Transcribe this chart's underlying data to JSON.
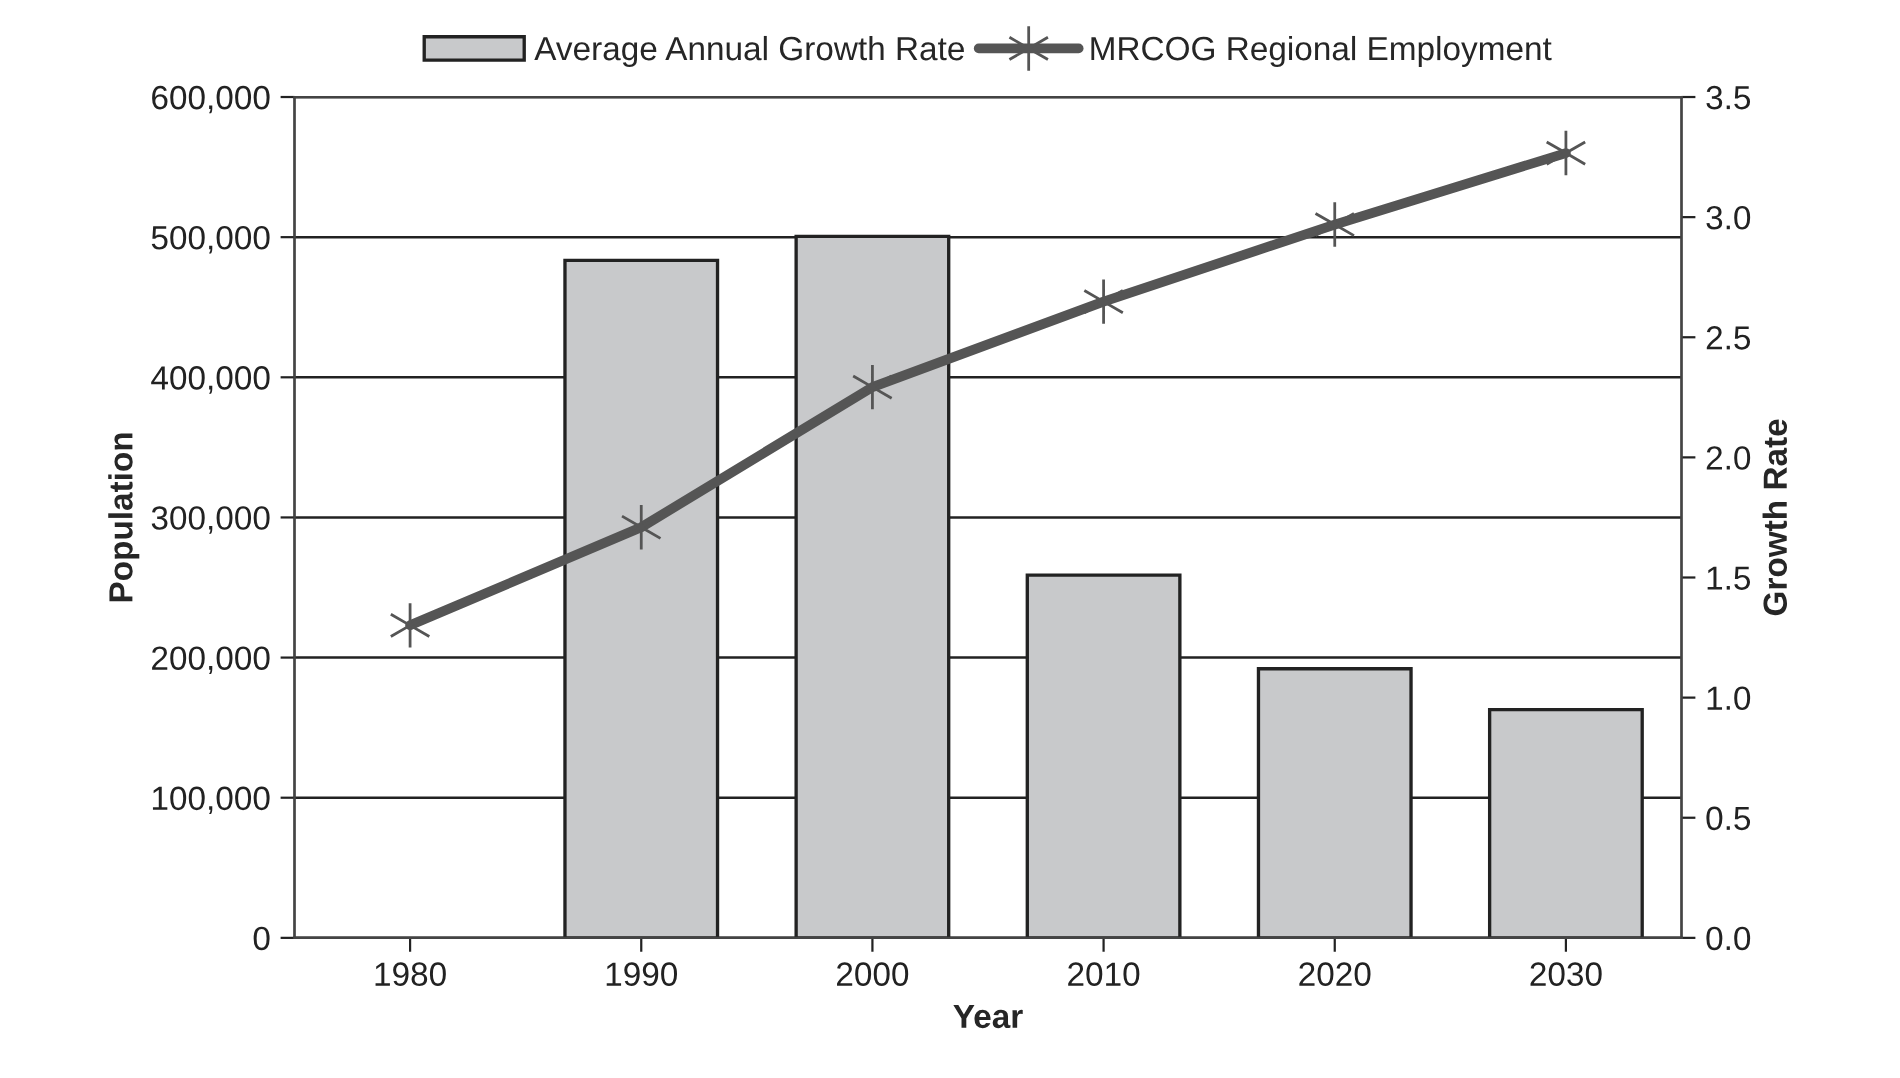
{
  "chart_data": {
    "type": "bar",
    "xlabel": "Year",
    "ylabel": "Population",
    "y2label": "Growth Rate",
    "categories": [
      "1980",
      "1990",
      "2000",
      "2010",
      "2020",
      "2030"
    ],
    "series": [
      {
        "name": "Average Annual Growth Rate",
        "axis": "y2",
        "color": "#c8c9cb",
        "values": [
          null,
          2.82,
          2.92,
          1.51,
          1.12,
          0.95
        ]
      },
      {
        "name": "MRCOG Regional Employment",
        "type": "line",
        "color": "#555555",
        "marker": "cross",
        "line_style": "solid",
        "values": [
          223000,
          293000,
          393000,
          454000,
          509000,
          560000
        ]
      }
    ],
    "ylim": [
      0,
      600000
    ],
    "yticks": [
      0,
      {
        "value": 100000,
        "label": "100,000"
      },
      {
        "value": 200000,
        "label": "200,000"
      },
      {
        "value": 300000,
        "label": "300,000"
      },
      {
        "value": 400000,
        "label": "400,000"
      },
      {
        "value": 500000,
        "label": "500,000"
      },
      {
        "value": 600000,
        "label": "600,000"
      }
    ],
    "y2lim": [
      0,
      3.5
    ],
    "y2ticks": [
      {
        "value": 0,
        "label": "0.0"
      },
      0.5,
      {
        "value": 1,
        "label": "1.0"
      },
      1.5,
      {
        "value": 2,
        "label": "2.0"
      },
      2.5,
      {
        "value": 3,
        "label": "3.0"
      },
      3.5
    ],
    "grid": "y",
    "legend": "top"
  }
}
